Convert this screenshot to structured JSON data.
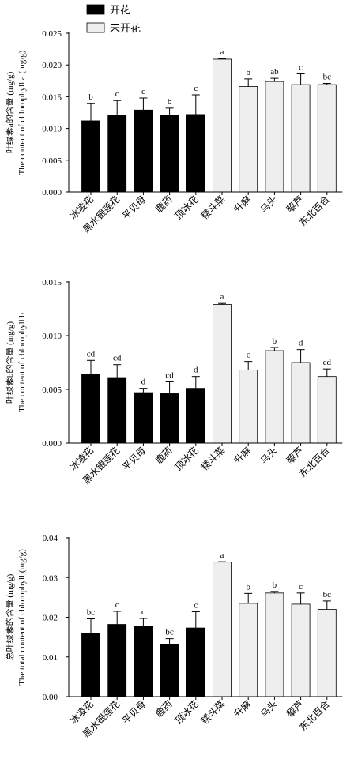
{
  "legend": {
    "placement": "top",
    "items": [
      {
        "label": "开花",
        "color": "#000000"
      },
      {
        "label": "未开花",
        "color": "#eeeeee"
      }
    ]
  },
  "chart_data": [
    {
      "type": "bar",
      "ylabel": "叶绿素a的含量 (mg/g)",
      "ylabel2": "The content of chlorophyll a (mg/g)",
      "ylim": [
        0,
        0.025
      ],
      "yticks": [
        "0.000",
        "0.005",
        "0.010",
        "0.015",
        "0.020",
        "0.025"
      ],
      "categories": [
        "冰凌花",
        "黑水银莲花",
        "平贝母",
        "鹿药",
        "顶冰花",
        "耧斗菜",
        "升麻",
        "乌头",
        "藜芦",
        "东北百合"
      ],
      "groups": [
        "开花",
        "开花",
        "开花",
        "开花",
        "开花",
        "未开花",
        "未开花",
        "未开花",
        "未开花",
        "未开花"
      ],
      "values": [
        0.0112,
        0.0121,
        0.0129,
        0.0121,
        0.0122,
        0.0209,
        0.0166,
        0.0174,
        0.0169,
        0.0169
      ],
      "errors": [
        0.0027,
        0.0023,
        0.0019,
        0.0011,
        0.0031,
        0.0001,
        0.0012,
        0.0005,
        0.0017,
        0.0002
      ],
      "letters": [
        "b",
        "c",
        "c",
        "b",
        "c",
        "a",
        "b",
        "ab",
        "c",
        "bc"
      ],
      "grid": false
    },
    {
      "type": "bar",
      "ylabel": "叶绿素b的含量 (mg/g)",
      "ylabel2": "The content of chlorophyll b",
      "ylim": [
        0,
        0.015
      ],
      "yticks": [
        "0.000",
        "0.005",
        "0.010",
        "0.015"
      ],
      "categories": [
        "冰凌花",
        "黑水银莲花",
        "平贝母",
        "鹿药",
        "顶冰花",
        "耧斗菜",
        "升麻",
        "乌头",
        "藜芦",
        "东北百合"
      ],
      "groups": [
        "开花",
        "开花",
        "开花",
        "开花",
        "开花",
        "未开花",
        "未开花",
        "未开花",
        "未开花",
        "未开花"
      ],
      "values": [
        0.0064,
        0.0061,
        0.0047,
        0.0046,
        0.0051,
        0.0129,
        0.0068,
        0.0086,
        0.0075,
        0.0062
      ],
      "errors": [
        0.0013,
        0.0012,
        0.0004,
        0.0011,
        0.0011,
        0.0001,
        0.0008,
        0.0003,
        0.0012,
        0.0007
      ],
      "letters": [
        "cd",
        "cd",
        "d",
        "cd",
        "d",
        "a",
        "c",
        "b",
        "d",
        "cd"
      ],
      "grid": false
    },
    {
      "type": "bar",
      "ylabel": "总叶绿素的含量 (mg/g)",
      "ylabel2": "The total content of chlorophyll (mg/g)",
      "ylim": [
        0,
        0.04
      ],
      "yticks": [
        "0.00",
        "0.01",
        "0.02",
        "0.03",
        "0.04"
      ],
      "categories": [
        "冰凌花",
        "黑水银莲花",
        "平贝母",
        "鹿药",
        "顶冰花",
        "耧斗菜",
        "升麻",
        "乌头",
        "藜芦",
        "东北百合"
      ],
      "groups": [
        "开花",
        "开花",
        "开花",
        "开花",
        "开花",
        "未开花",
        "未开花",
        "未开花",
        "未开花",
        "未开花"
      ],
      "values": [
        0.0159,
        0.0182,
        0.0177,
        0.0132,
        0.0173,
        0.0339,
        0.0235,
        0.0261,
        0.0233,
        0.022
      ],
      "errors": [
        0.0037,
        0.0033,
        0.002,
        0.0014,
        0.0041,
        0.0001,
        0.0025,
        0.0004,
        0.0028,
        0.0021
      ],
      "letters": [
        "bc",
        "c",
        "c",
        "bc",
        "c",
        "a",
        "b",
        "b",
        "c",
        "bc"
      ],
      "grid": false
    }
  ]
}
